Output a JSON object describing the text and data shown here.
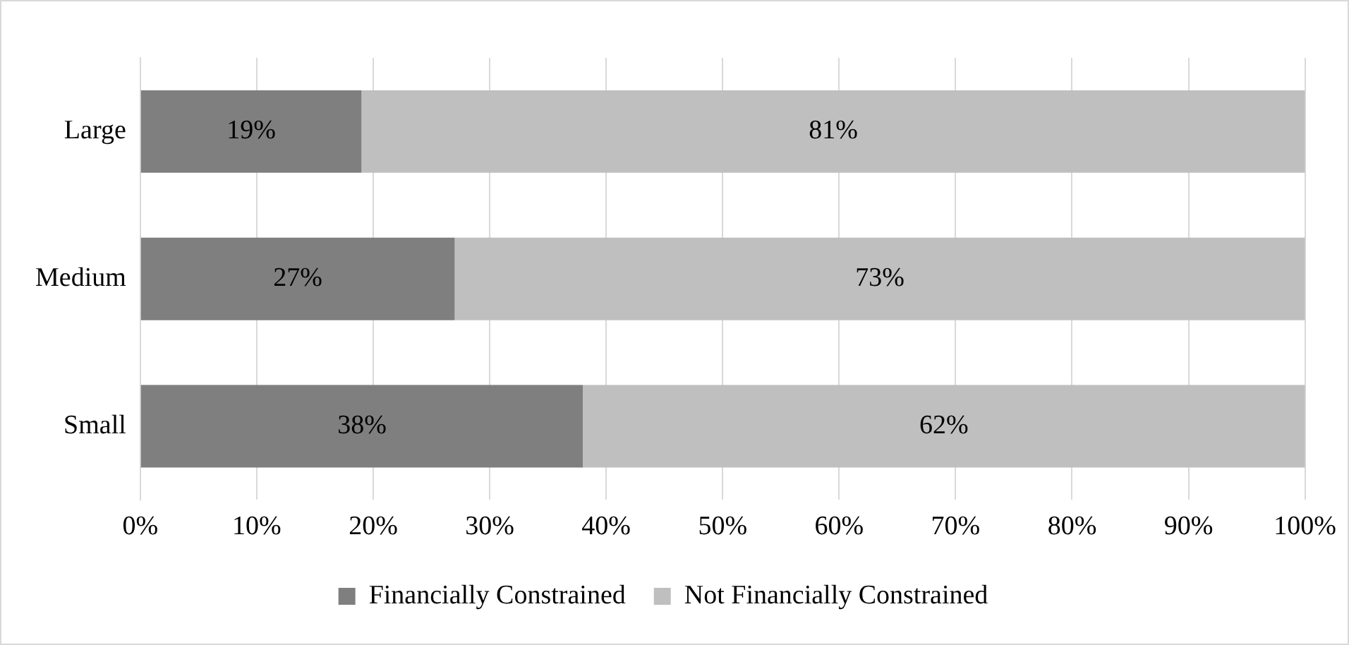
{
  "chart_data": {
    "type": "bar",
    "orientation": "horizontal",
    "stacked": true,
    "categories": [
      "Large",
      "Medium",
      "Small"
    ],
    "series": [
      {
        "name": "Financially Constrained",
        "color": "#7f7f7f",
        "values": [
          19,
          27,
          38
        ],
        "value_labels": [
          "19%",
          "27%",
          "38%"
        ]
      },
      {
        "name": "Not Financially Constrained",
        "color": "#bfbfbf",
        "values": [
          81,
          73,
          62
        ],
        "value_labels": [
          "81%",
          "73%",
          "62%"
        ]
      }
    ],
    "xlim": [
      0,
      100
    ],
    "xticks": [
      {
        "value": 0,
        "label": "0%"
      },
      {
        "value": 10,
        "label": "10%"
      },
      {
        "value": 20,
        "label": "20%"
      },
      {
        "value": 30,
        "label": "30%"
      },
      {
        "value": 40,
        "label": "40%"
      },
      {
        "value": 50,
        "label": "50%"
      },
      {
        "value": 60,
        "label": "60%"
      },
      {
        "value": 70,
        "label": "70%"
      },
      {
        "value": 80,
        "label": "80%"
      },
      {
        "value": 90,
        "label": "90%"
      },
      {
        "value": 100,
        "label": "100%"
      }
    ],
    "grid": "x",
    "legend": "bottom"
  }
}
